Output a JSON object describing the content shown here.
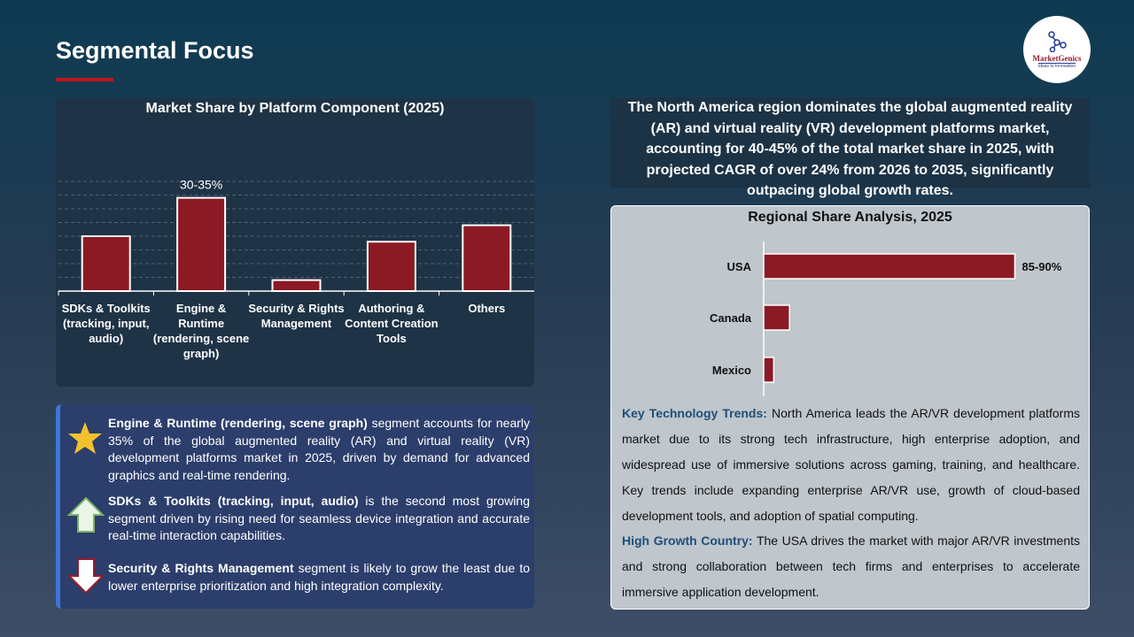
{
  "header": {
    "title": "Segmental Focus"
  },
  "logo": {
    "name": "MarketGenics",
    "tagline": "Ideas to Innovation"
  },
  "chart_data": [
    {
      "type": "bar",
      "title": "Market Share by Platform Component (2025)",
      "categories": [
        "SDKs & Toolkits (tracking, input, audio)",
        "Engine & Runtime (rendering, scene graph)",
        "Security & Rights Management",
        "Authoring & Content Creation Tools",
        "Others"
      ],
      "values": [
        20,
        34,
        4,
        18,
        24
      ],
      "data_labels": [
        "",
        "30-35%",
        "",
        "",
        ""
      ],
      "ylim": [
        0,
        40
      ],
      "grid": true,
      "bar_color": "#8b1a24"
    },
    {
      "type": "bar",
      "orientation": "horizontal",
      "title": "Regional Share Analysis, 2025",
      "categories": [
        "USA",
        "Canada",
        "Mexico"
      ],
      "values": [
        87.5,
        9,
        3.5
      ],
      "data_labels": [
        "85-90%",
        "",
        ""
      ],
      "xlim": [
        0,
        100
      ],
      "bar_color": "#8b1a24"
    }
  ],
  "insights": [
    {
      "icon": "star",
      "bold": "Engine & Runtime (rendering, scene graph)",
      "text": " segment accounts for nearly 35% of the global augmented reality (AR) and virtual reality (VR) development platforms market in 2025, driven by demand for advanced graphics and real-time rendering."
    },
    {
      "icon": "arrow-up",
      "bold": "SDKs & Toolkits (tracking, input, audio)",
      "text": " is the second most growing segment driven by rising need for seamless device integration and accurate real-time interaction capabilities."
    },
    {
      "icon": "arrow-down",
      "bold": "Security & Rights Management",
      "text": " segment is likely to grow the least due to lower enterprise prioritization and high integration complexity."
    }
  ],
  "north_america_text": "The North America region dominates the global augmented reality (AR) and virtual reality (VR) development platforms market, accounting for 40-45% of the total market share in 2025, with projected CAGR of over 24% from 2026 to 2035, significantly outpacing global growth rates.",
  "trends": {
    "label": "Key Technology Trends:",
    "text": " North America leads the AR/VR development platforms market due to its strong tech infrastructure, high enterprise adoption, and widespread use of immersive solutions across gaming, training, and healthcare. Key trends include expanding enterprise AR/VR use, growth of cloud-based development tools, and adoption of spatial computing."
  },
  "growth": {
    "label": "High Growth Country:",
    "text": " The USA drives the market with major AR/VR investments and strong collaboration between tech firms and enterprises to accelerate immersive application development."
  }
}
